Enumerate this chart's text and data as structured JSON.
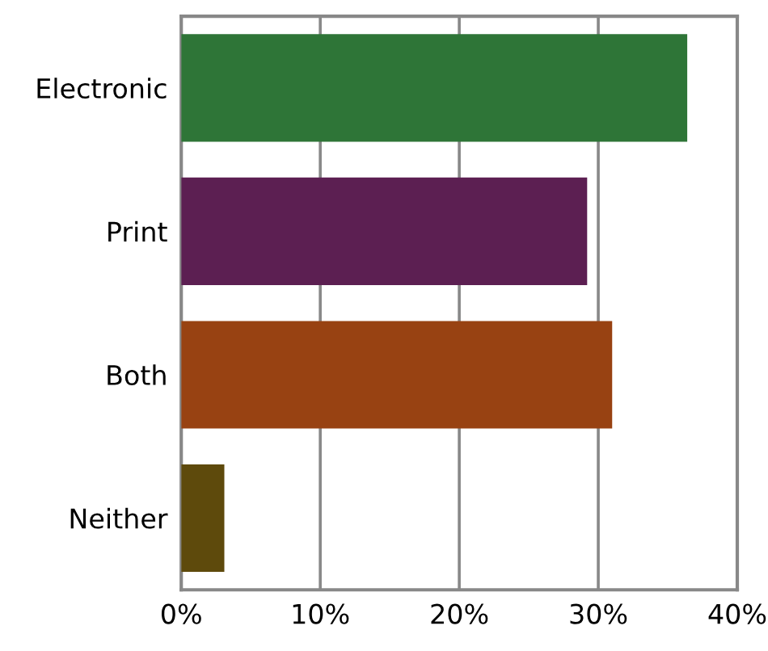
{
  "chart_data": {
    "type": "bar",
    "orientation": "horizontal",
    "categories": [
      "Electronic",
      "Print",
      "Both",
      "Neither"
    ],
    "values": [
      36.4,
      29.2,
      31.0,
      3.1
    ],
    "colors": [
      "#2e7537",
      "#5c1f52",
      "#984212",
      "#5e4a0c"
    ],
    "xlim": [
      0,
      40
    ],
    "xticks": [
      {
        "value": 0,
        "label": "0%"
      },
      {
        "value": 10,
        "label": "10%"
      },
      {
        "value": 20,
        "label": "20%"
      },
      {
        "value": 30,
        "label": "30%"
      },
      {
        "value": 40,
        "label": "40%"
      }
    ],
    "grid": "x",
    "legend": false
  }
}
